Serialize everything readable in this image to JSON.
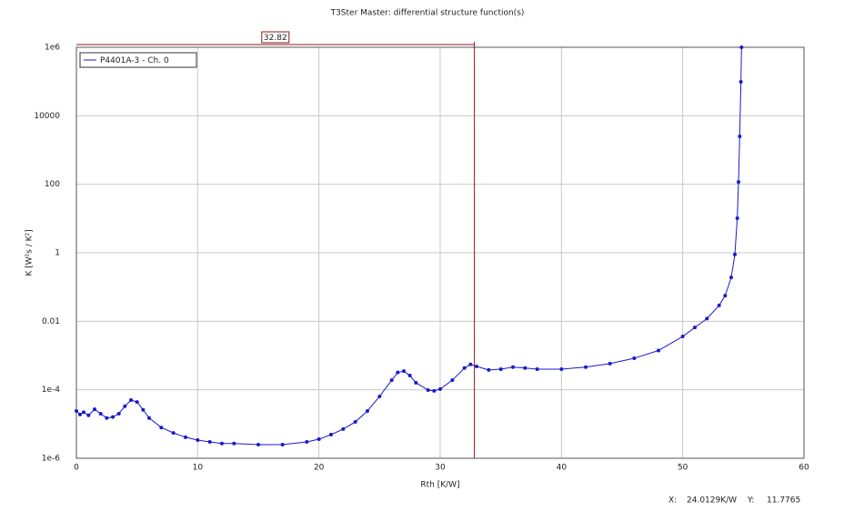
{
  "chart_data": {
    "type": "line",
    "title": "T3Ster Master: differential structure function(s)",
    "x_label": "Rth  [K/W]",
    "y_label": "K  [W²s / K²]",
    "x": [
      0,
      0.3,
      0.6,
      1,
      1.5,
      2,
      2.5,
      3,
      3.5,
      4,
      4.5,
      5,
      5.5,
      6,
      7,
      8,
      9,
      10,
      11,
      12,
      13,
      15,
      17,
      19,
      20,
      21,
      22,
      23,
      24,
      25,
      26,
      26.5,
      27,
      27.5,
      28,
      29,
      29.5,
      30,
      31,
      32,
      32.5,
      33,
      34,
      35,
      36,
      37,
      38,
      40,
      42,
      44,
      46,
      48,
      50,
      51,
      52,
      53,
      53.5,
      54,
      54.3,
      54.5,
      54.6,
      54.7,
      54.8,
      54.85
    ],
    "series": [
      {
        "name": "P4401A-3 - Ch. 0",
        "color": "#1a1acc",
        "values": [
          2.4e-05,
          1.9e-05,
          2.2e-05,
          1.8e-05,
          2.7e-05,
          2e-05,
          1.5e-05,
          1.6e-05,
          2e-05,
          3.3e-05,
          5e-05,
          4.4e-05,
          2.6e-05,
          1.5e-05,
          7.9e-06,
          5.5e-06,
          4.1e-06,
          3.4e-06,
          3e-06,
          2.7e-06,
          2.7e-06,
          2.5e-06,
          2.5e-06,
          3e-06,
          3.6e-06,
          4.9e-06,
          7.1e-06,
          1.15e-05,
          2.4e-05,
          6.4e-05,
          0.00019,
          0.00032,
          0.00035,
          0.00026,
          0.00016,
          9.8e-05,
          9.3e-05,
          0.000105,
          0.00019,
          0.00043,
          0.00055,
          0.00048,
          0.00038,
          0.0004,
          0.00046,
          0.00043,
          0.0004,
          0.0004,
          0.00046,
          0.00058,
          0.00083,
          0.0014,
          0.0036,
          0.0066,
          0.012,
          0.029,
          0.056,
          0.19,
          0.89,
          10.2,
          117,
          2500,
          98000,
          1000000
        ]
      }
    ],
    "xlim": [
      0,
      60
    ],
    "xticks": [
      0,
      10,
      20,
      30,
      40,
      50,
      60
    ],
    "ylim": [
      1e-06,
      1000000.0
    ],
    "log_y": true,
    "yticks": [
      {
        "value": 1e-06,
        "label": "1e-6"
      },
      {
        "value": 0.0001,
        "label": "1e-4"
      },
      0.01,
      1,
      100,
      10000,
      {
        "value": 1000000.0,
        "label": "1e6"
      }
    ],
    "grid": true,
    "legend": "upper left",
    "cursor": {
      "value": 32.82,
      "color": "#8b1a1a"
    },
    "status": {
      "x_caption": "X:",
      "x_value": "24.0129K/W",
      "y_caption": "Y:",
      "y_value": "11.7765"
    }
  }
}
